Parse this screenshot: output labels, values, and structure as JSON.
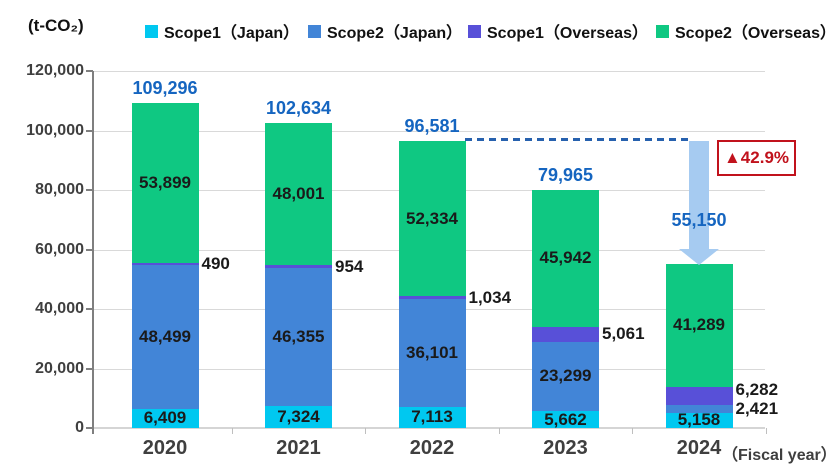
{
  "unit_label": "(t-CO₂)",
  "x_axis_note": "（Fiscal year）",
  "annotations": {
    "decrease_badge": "▲42.9%",
    "badge_color": "#c1121c",
    "dashed_reference": {
      "from_category": "2022",
      "to_category": "2024",
      "value": 96581
    },
    "decrease_arrow": {
      "points_to": "2024",
      "color": "#a6cbf1"
    }
  },
  "chart_data": {
    "type": "bar",
    "stacked": true,
    "title": "",
    "xlabel": "Fiscal year",
    "ylabel": "t-CO₂",
    "ylim": [
      0,
      120000
    ],
    "ytick_step": 20000,
    "yticks": [
      "0",
      "20,000",
      "40,000",
      "60,000",
      "80,000",
      "100,000",
      "120,000"
    ],
    "grid": true,
    "legend_position": "top",
    "categories": [
      "2020",
      "2021",
      "2022",
      "2023",
      "2024"
    ],
    "series": [
      {
        "id": "scope1-japan",
        "name": "Scope1（Japan）",
        "color": "#00c8f0",
        "values": [
          6409,
          7324,
          7113,
          5662,
          5158
        ]
      },
      {
        "id": "scope2-japan",
        "name": "Scope2（Japan）",
        "color": "#4285d7",
        "values": [
          48499,
          46355,
          36101,
          23299,
          2421
        ]
      },
      {
        "id": "scope1-overseas",
        "name": "Scope1（Overseas）",
        "color": "#5850d8",
        "values": [
          490,
          954,
          1034,
          5061,
          6282
        ]
      },
      {
        "id": "scope2-overseas",
        "name": "Scope2（Overseas）",
        "color": "#0fc882",
        "values": [
          53899,
          48001,
          52334,
          45942,
          41289
        ]
      }
    ],
    "totals": [
      109296,
      102634,
      96581,
      79965,
      55150
    ],
    "total_label_color": "#1565c0"
  }
}
